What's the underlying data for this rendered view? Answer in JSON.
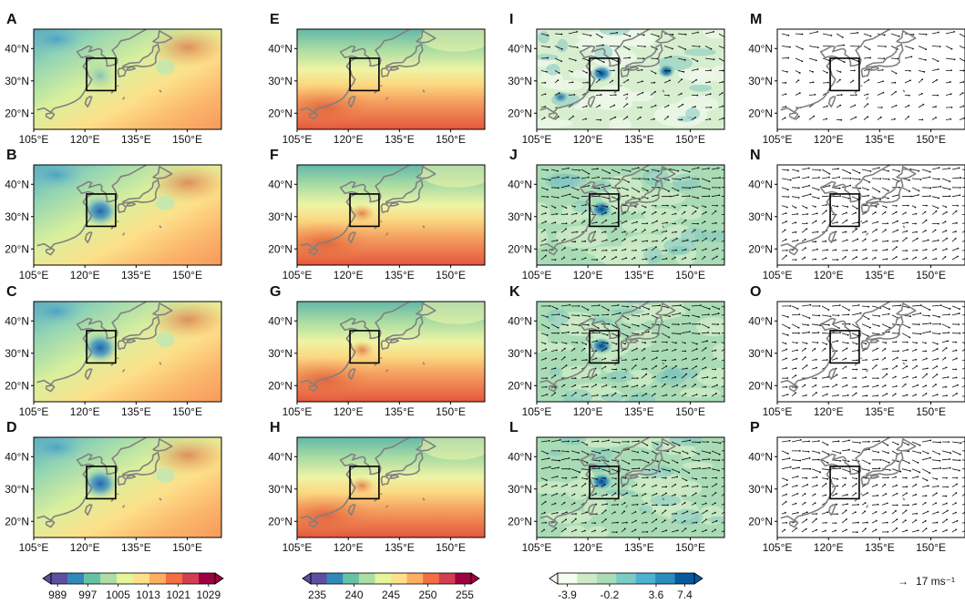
{
  "figure": {
    "panels": [
      {
        "letter": "A",
        "field": "pressure",
        "variant": 0
      },
      {
        "letter": "B",
        "field": "pressure",
        "variant": 1
      },
      {
        "letter": "C",
        "field": "pressure",
        "variant": 2
      },
      {
        "letter": "D",
        "field": "pressure",
        "variant": 3
      },
      {
        "letter": "E",
        "field": "temperature",
        "variant": 0
      },
      {
        "letter": "F",
        "field": "temperature",
        "variant": 1
      },
      {
        "letter": "G",
        "field": "temperature",
        "variant": 2
      },
      {
        "letter": "H",
        "field": "temperature",
        "variant": 3
      },
      {
        "letter": "I",
        "field": "vorticity",
        "variant": 0
      },
      {
        "letter": "J",
        "field": "vorticity",
        "variant": 1
      },
      {
        "letter": "K",
        "field": "vorticity",
        "variant": 2
      },
      {
        "letter": "L",
        "field": "vorticity",
        "variant": 3
      },
      {
        "letter": "M",
        "field": "wind",
        "variant": 0
      },
      {
        "letter": "N",
        "field": "wind",
        "variant": 1
      },
      {
        "letter": "O",
        "field": "wind",
        "variant": 2
      },
      {
        "letter": "P",
        "field": "wind",
        "variant": 3
      }
    ],
    "lat_ticks": [
      "20°N",
      "30°N",
      "40°N"
    ],
    "lon_ticks": [
      "105°E",
      "120°E",
      "135°E",
      "150°E"
    ],
    "colorbars": [
      {
        "name": "pressure",
        "ticks": [
          "989",
          "997",
          "1005",
          "1013",
          "1021",
          "1029"
        ]
      },
      {
        "name": "temperature",
        "ticks": [
          "235",
          "240",
          "245",
          "250",
          "255"
        ]
      },
      {
        "name": "vorticity",
        "ticks": [
          "-3.9",
          "-0.2",
          "3.6",
          "7.4"
        ]
      }
    ],
    "wind_reference": {
      "arrow": "→",
      "label": "17 ms⁻¹"
    },
    "colors": {
      "land_outline": "#808080",
      "box": "#000000",
      "pressure_ramp": [
        "#5e4fa2",
        "#3288bd",
        "#66c2a5",
        "#abdda4",
        "#e6f598",
        "#fee08b",
        "#fdae61",
        "#f46d43",
        "#d53e4f",
        "#9e0142"
      ],
      "vorticity_ramp": [
        "#f7fcf0",
        "#ccebc5",
        "#a8ddb5",
        "#7bccc4",
        "#4eb3d3",
        "#2b8cbe",
        "#08589e"
      ]
    }
  }
}
